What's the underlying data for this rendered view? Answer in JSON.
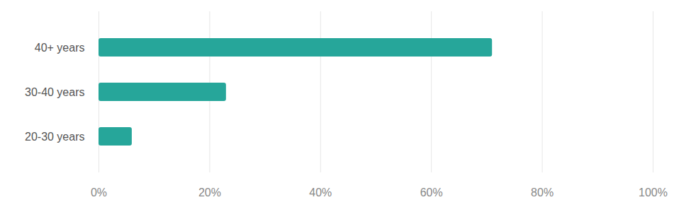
{
  "chart_data": {
    "type": "bar",
    "orientation": "horizontal",
    "categories": [
      "40+ years",
      "30-40 years",
      "20-30 years"
    ],
    "values": [
      71,
      23,
      6
    ],
    "color": "#26a69a",
    "xlim": [
      0,
      100
    ],
    "xticks": [
      {
        "value": 0,
        "label": "0%"
      },
      {
        "value": 20,
        "label": "20%"
      },
      {
        "value": 40,
        "label": "40%"
      },
      {
        "value": 60,
        "label": "60%"
      },
      {
        "value": 80,
        "label": "80%"
      },
      {
        "value": 100,
        "label": "100%"
      }
    ],
    "grid": true
  }
}
